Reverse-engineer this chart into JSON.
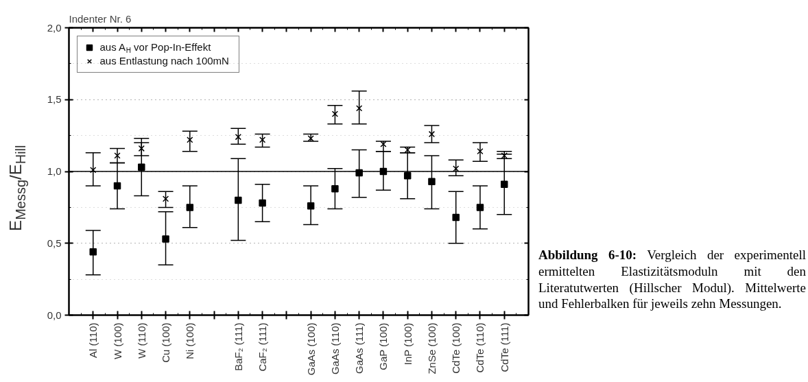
{
  "chart_data": {
    "type": "scatter",
    "title": "Indenter Nr. 6",
    "ylabel": "E$_{Messg}$/E$_{Hill}$",
    "categories": [
      "Al (110)",
      "W (100)",
      "W (110)",
      "Cu (100)",
      "Ni (100)",
      null,
      "BaF₂ (111)",
      "CaF₂ (111)",
      null,
      "GaAs (100)",
      "GaAs (110)",
      "GaAs (111)",
      "GaP (100)",
      "InP (100)",
      "ZnSe (100)",
      "CdTe (100)",
      "CdTe (110)",
      "CdTe (111)"
    ],
    "series": [
      {
        "name": "aus A$_{H}$ vor Pop-In-Effekt",
        "color": "#000000",
        "marker": "square",
        "values": [
          0.44,
          0.9,
          1.03,
          0.53,
          0.75,
          null,
          0.8,
          0.78,
          null,
          0.76,
          0.88,
          0.99,
          1.0,
          0.97,
          0.93,
          0.68,
          0.75,
          0.91
        ],
        "errors": [
          [
            0.28,
            0.59
          ],
          [
            0.74,
            1.06
          ],
          [
            0.83,
            1.2
          ],
          [
            0.35,
            0.72
          ],
          [
            0.61,
            0.9
          ],
          null,
          [
            0.52,
            1.09
          ],
          [
            0.65,
            0.91
          ],
          null,
          [
            0.63,
            0.9
          ],
          [
            0.74,
            1.02
          ],
          [
            0.82,
            1.15
          ],
          [
            0.87,
            1.14
          ],
          [
            0.81,
            1.13
          ],
          [
            0.74,
            1.11
          ],
          [
            0.5,
            0.86
          ],
          [
            0.6,
            0.9
          ],
          [
            0.7,
            1.12
          ]
        ]
      },
      {
        "name": "aus Entlastung nach 100mN",
        "color": "#000000",
        "marker": "cross",
        "values": [
          1.01,
          1.11,
          1.16,
          0.81,
          1.22,
          null,
          1.24,
          1.22,
          null,
          1.23,
          1.4,
          1.44,
          1.19,
          1.15,
          1.26,
          1.02,
          1.14,
          1.11
        ],
        "errors": [
          [
            0.9,
            1.13
          ],
          [
            1.06,
            1.16
          ],
          [
            1.11,
            1.23
          ],
          [
            0.75,
            0.86
          ],
          [
            1.14,
            1.28
          ],
          null,
          [
            1.19,
            1.3
          ],
          [
            1.17,
            1.26
          ],
          null,
          [
            1.21,
            1.26
          ],
          [
            1.33,
            1.46
          ],
          [
            1.33,
            1.56
          ],
          [
            1.14,
            1.21
          ],
          [
            1.13,
            1.17
          ],
          [
            1.2,
            1.32
          ],
          [
            0.97,
            1.08
          ],
          [
            1.07,
            1.2
          ],
          [
            1.09,
            1.14
          ]
        ]
      }
    ],
    "ylim": [
      0,
      2
    ],
    "yticks": [
      {
        "value": 0,
        "label": "0,0"
      },
      {
        "value": 0.5,
        "label": "0,5"
      },
      {
        "value": 1,
        "label": "1,0"
      },
      {
        "value": 1.5,
        "label": "1,5"
      },
      {
        "value": 2,
        "label": "2,0"
      }
    ],
    "grid": "y",
    "legend": "top left",
    "ref_lines": [
      {
        "axis": "y",
        "value": 1,
        "color": "#000000",
        "line_style": "solid"
      }
    ],
    "annotations": [
      "Abbildung 6-10: Vergleich der experimentell ermittelten Elastizitätsmoduln mit den Literatutwerten (Hillscher Modul). Mittelwerte und Fehlerbalken für jeweils zehn Messungen."
    ]
  }
}
